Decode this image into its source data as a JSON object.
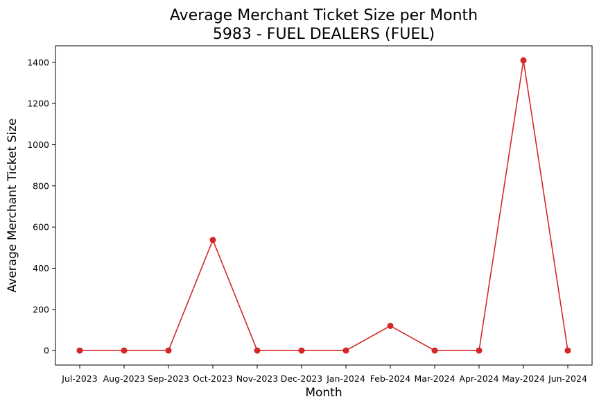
{
  "chart_data": {
    "type": "line",
    "title_lines": [
      "Average Merchant Ticket Size per Month",
      "5983 - FUEL DEALERS (FUEL)"
    ],
    "xlabel": "Month",
    "ylabel": "Average Merchant Ticket Size",
    "categories": [
      "Jul-2023",
      "Aug-2023",
      "Sep-2023",
      "Oct-2023",
      "Nov-2023",
      "Dec-2023",
      "Jan-2024",
      "Feb-2024",
      "Mar-2024",
      "Apr-2024",
      "May-2024",
      "Jun-2024"
    ],
    "series": [
      {
        "values": [
          0,
          0,
          0,
          537,
          0,
          0,
          0,
          120,
          0,
          0,
          1410,
          0
        ],
        "color": "#d62728",
        "marker": "circle"
      }
    ],
    "yticks": [
      0,
      200,
      400,
      600,
      800,
      1000,
      1200,
      1400
    ],
    "ylim": [
      -70.5,
      1480.5
    ],
    "grid": false,
    "legend": "none"
  }
}
